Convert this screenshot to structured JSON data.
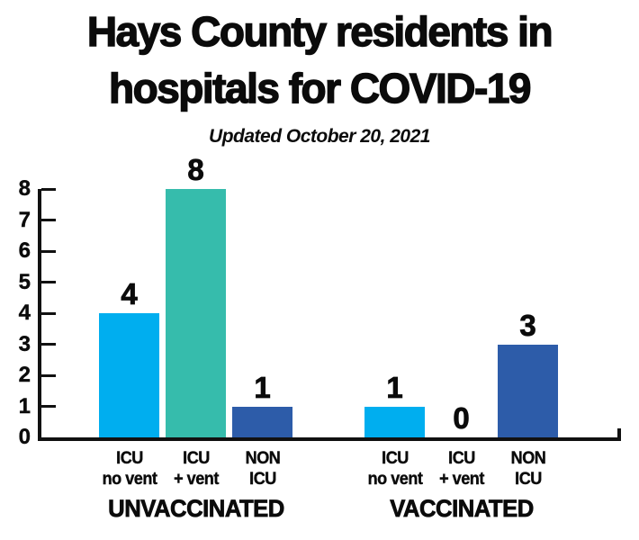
{
  "header": {
    "title_line1": "Hays County residents in",
    "title_line2": "hospitals for COVID-19",
    "subtitle": "Updated October 20, 2021"
  },
  "colors": {
    "bar_icu_no_vent": "#00AEEF",
    "bar_icu_vent": "#36BCAC",
    "bar_non_icu": "#2D5CA9",
    "axis": "#111111",
    "text": "#0B0B0B",
    "background": "#FFFFFF"
  },
  "chart_data": {
    "type": "bar",
    "title": "Hays County residents in hospitals for COVID-19",
    "subtitle": "Updated October 20, 2021",
    "xlabel": "",
    "ylabel": "",
    "ylim": [
      0,
      8
    ],
    "yticks": [
      0,
      1,
      2,
      3,
      4,
      5,
      6,
      7,
      8
    ],
    "grid": false,
    "legend": "none",
    "categories": [
      "ICU no vent",
      "ICU + vent",
      "NON ICU"
    ],
    "category_lines": [
      [
        "ICU",
        "no vent"
      ],
      [
        "ICU",
        "+ vent"
      ],
      [
        "NON",
        "ICU"
      ]
    ],
    "series": [
      {
        "name": "UNVACCINATED",
        "values": [
          4,
          8,
          1
        ]
      },
      {
        "name": "VACCINATED",
        "values": [
          1,
          0,
          3
        ]
      }
    ],
    "bar_colors": [
      "#00AEEF",
      "#36BCAC",
      "#2D5CA9"
    ]
  }
}
